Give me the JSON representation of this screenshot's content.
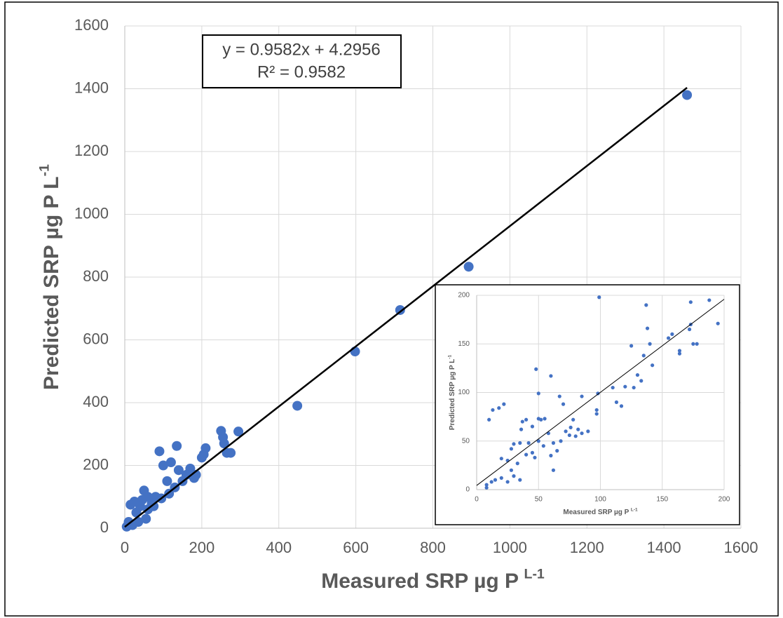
{
  "chart_data": [
    {
      "type": "scatter",
      "xlabel": {
        "text": "Measured SRP µg P",
        "sup": "L-1"
      },
      "ylabel": {
        "text": "Predicted SRP µg P L",
        "sup": "-1"
      },
      "annotations": [
        "y = 0.9582x + 4.2956",
        "R² = 0.9582"
      ],
      "trendline": {
        "slope": 0.9582,
        "intercept": 4.2956,
        "x": [
          0,
          1460
        ]
      },
      "color": "#4472c4",
      "grid": true,
      "xlim": [
        0,
        1600
      ],
      "ylim": [
        0,
        1600
      ],
      "xticks": [
        0,
        200,
        400,
        600,
        800,
        1000,
        1200,
        1400,
        1600
      ],
      "yticks": [
        0,
        200,
        400,
        600,
        800,
        1000,
        1200,
        1400,
        1600
      ],
      "x": [
        1460,
        893,
        715,
        598,
        448,
        295,
        250,
        255,
        258,
        275,
        265,
        210,
        205,
        200,
        185,
        170,
        160,
        140,
        135,
        120,
        100,
        90,
        110,
        130,
        80,
        70,
        60,
        50,
        45,
        40,
        30,
        25,
        15,
        10,
        5,
        20,
        35,
        55,
        60,
        75,
        95,
        150,
        180,
        115
      ],
      "y": [
        1380,
        833,
        695,
        563,
        390,
        308,
        310,
        290,
        270,
        240,
        240,
        255,
        235,
        225,
        170,
        190,
        170,
        185,
        262,
        210,
        200,
        245,
        150,
        130,
        100,
        80,
        100,
        120,
        90,
        70,
        50,
        85,
        75,
        20,
        5,
        10,
        20,
        30,
        60,
        70,
        95,
        150,
        160,
        110
      ]
    },
    {
      "type": "scatter",
      "xlabel": {
        "text": "Measured SRP µg P",
        "sup": "L-1"
      },
      "ylabel": {
        "text": "Predicted SRP µg P L",
        "sup": "-1"
      },
      "trendline": {
        "slope": 0.9582,
        "intercept": 4.2956,
        "x": [
          0,
          200
        ]
      },
      "color": "#4472c4",
      "grid": true,
      "xlim": [
        0,
        200
      ],
      "ylim": [
        0,
        200
      ],
      "xticks": [
        0,
        50,
        100,
        150,
        200
      ],
      "yticks": [
        0,
        50,
        100,
        150,
        200
      ],
      "x": [
        99,
        137,
        173,
        188,
        195,
        173,
        172,
        138,
        158,
        155,
        164,
        164,
        178,
        175,
        140,
        142,
        125,
        135,
        130,
        127,
        133,
        113,
        117,
        120,
        110,
        98,
        97,
        97,
        85,
        82,
        78,
        76,
        75,
        72,
        68,
        62,
        58,
        54,
        50,
        48,
        50,
        60,
        67,
        70,
        55,
        52,
        50,
        45,
        40,
        37,
        36,
        35,
        30,
        28,
        25,
        22,
        18,
        13,
        10,
        15,
        8,
        12,
        20,
        25,
        30,
        35,
        40,
        45,
        47,
        42,
        28,
        33,
        60,
        62,
        65,
        80,
        85,
        90,
        8,
        20
      ],
      "y": [
        198,
        190,
        193,
        195,
        171,
        170,
        165,
        166,
        160,
        156,
        143,
        140,
        150,
        150,
        150,
        128,
        148,
        138,
        118,
        105,
        112,
        90,
        86,
        106,
        105,
        99,
        82,
        78,
        96,
        62,
        72,
        64,
        56,
        60,
        50,
        48,
        58,
        45,
        50,
        124,
        99,
        117,
        96,
        88,
        73,
        72,
        73,
        65,
        72,
        70,
        62,
        48,
        47,
        42,
        30,
        88,
        84,
        82,
        72,
        10,
        5,
        8,
        12,
        8,
        14,
        10,
        36,
        38,
        33,
        48,
        20,
        27,
        35,
        20,
        40,
        55,
        58,
        60,
        2,
        32
      ]
    }
  ]
}
